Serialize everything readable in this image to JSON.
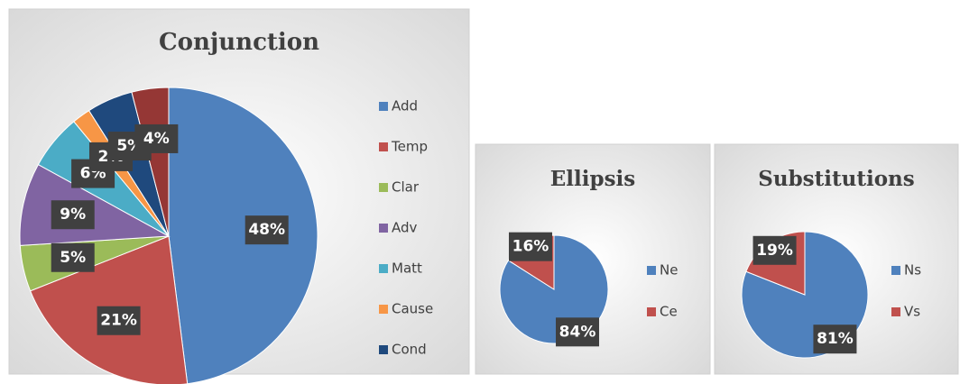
{
  "chart_data": [
    {
      "type": "pie",
      "title": "Conjunction",
      "categories": [
        "Add",
        "Temp",
        "Clar",
        "Adv",
        "Matt",
        "Cause",
        "Cond",
        null
      ],
      "values": [
        48,
        21,
        5,
        9,
        6,
        2,
        5,
        4
      ],
      "value_labels": [
        "48%",
        "21%",
        "5%",
        "9%",
        "6%",
        "2%",
        "5%",
        "4%"
      ],
      "colors": [
        "#4f81bd",
        "#c0504d",
        "#9bbb59",
        "#8064a2",
        "#4bacc6",
        "#f79646",
        "#1f497d",
        "#953735"
      ]
    },
    {
      "type": "pie",
      "title": "Ellipsis",
      "categories": [
        "Ne",
        "Ce"
      ],
      "values": [
        84,
        16
      ],
      "value_labels": [
        "84%",
        "16%"
      ],
      "colors": [
        "#4f81bd",
        "#c0504d"
      ]
    },
    {
      "type": "pie",
      "title": "Substitutions",
      "categories": [
        "Ns",
        "Vs"
      ],
      "values": [
        81,
        19
      ],
      "value_labels": [
        "81%",
        "19%"
      ],
      "colors": [
        "#4f81bd",
        "#c0504d"
      ]
    }
  ]
}
